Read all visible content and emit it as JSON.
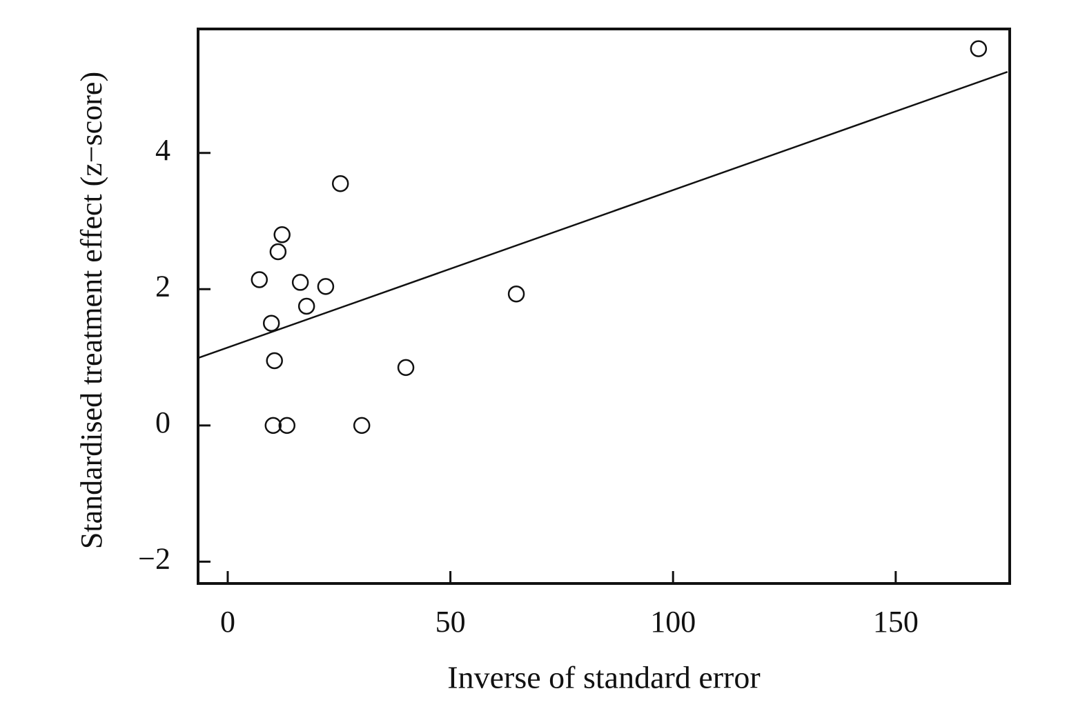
{
  "chart_data": {
    "type": "scatter",
    "x_label": "Inverse of standard error",
    "y_label": "Standardised treatment effect (z−score)",
    "xlim": [
      -6.66,
      175.6
    ],
    "ylim": [
      -2.32,
      5.82
    ],
    "xticks": [
      0,
      50,
      100,
      150
    ],
    "yticks": [
      {
        "value": -2,
        "label": "−2"
      },
      0,
      2,
      4
    ],
    "color": "#111111",
    "series": [
      {
        "x": [
          168.6,
          25.3,
          12.2,
          11.3,
          7.1,
          16.3,
          22.0,
          17.7,
          64.8,
          9.8,
          10.5,
          40.0,
          10.2,
          13.3,
          30.1
        ],
        "y": [
          5.53,
          3.55,
          2.8,
          2.55,
          2.14,
          2.1,
          2.04,
          1.75,
          1.93,
          1.5,
          0.95,
          0.85,
          0,
          0,
          0
        ]
      }
    ],
    "fit_line": {
      "x": [
        -6.66,
        175.1
      ],
      "y": [
        0.99,
        5.19
      ]
    }
  }
}
